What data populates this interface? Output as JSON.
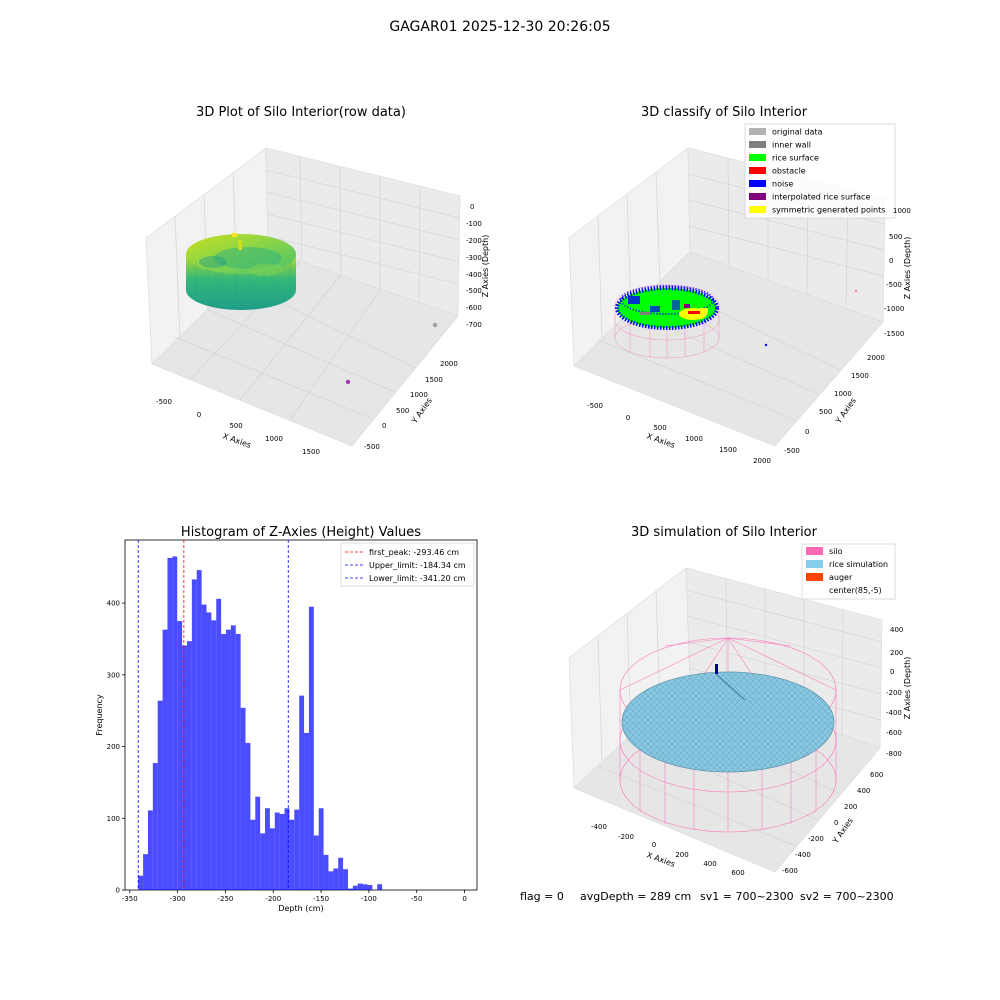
{
  "figure": {
    "title": "GAGAR01 2025-12-30 20:26:05",
    "footer": {
      "flag": "flag = 0",
      "avg_depth": "avgDepth = 289 cm",
      "sv1": "sv1 = 700~2300",
      "sv2": "sv2 = 700~2300"
    }
  },
  "panels": {
    "raw": {
      "title": "3D Plot of Silo Interior(row data)",
      "xlabel": "X Axies",
      "ylabel": "Y Axies",
      "zlabel": "Z Axies (Depth)",
      "xticks": [
        "-500",
        "0",
        "500",
        "1000",
        "1500"
      ],
      "yticks": [
        "-500",
        "0",
        "500",
        "1000",
        "1500",
        "2000"
      ],
      "zticks": [
        "0",
        "-100",
        "-200",
        "-300",
        "-400",
        "-500",
        "-600",
        "-700"
      ]
    },
    "classify": {
      "title": "3D classify of Silo Interior",
      "xlabel": "X Axies",
      "ylabel": "Y Axies",
      "zlabel": "Z Axies (Depth)",
      "xticks": [
        "-500",
        "0",
        "500",
        "1000",
        "1500",
        "2000"
      ],
      "yticks": [
        "-500",
        "0",
        "500",
        "1000",
        "1500",
        "2000"
      ],
      "zticks": [
        "1000",
        "500",
        "0",
        "-500",
        "-1000",
        "-1500"
      ],
      "legend": [
        {
          "label": "original data",
          "color": "#b3b3b3"
        },
        {
          "label": "inner wall",
          "color": "#808080"
        },
        {
          "label": "rice surface",
          "color": "#00ff00"
        },
        {
          "label": "obstacle",
          "color": "#ff0000"
        },
        {
          "label": "noise",
          "color": "#0000ff"
        },
        {
          "label": "interpolated rice surface",
          "color": "#800080"
        },
        {
          "label": "symmetric generated points",
          "color": "#ffff00"
        }
      ]
    },
    "simulation": {
      "title": "3D simulation of Silo Interior",
      "xlabel": "X Axies",
      "ylabel": "Y Axies",
      "zlabel": "Z Axies (Depth)",
      "xticks": [
        "-400",
        "-200",
        "0",
        "200",
        "400",
        "600"
      ],
      "yticks": [
        "-600",
        "-400",
        "-200",
        "0",
        "200",
        "400",
        "600"
      ],
      "zticks": [
        "400",
        "200",
        "0",
        "-200",
        "-400",
        "-600",
        "-800"
      ],
      "legend": [
        {
          "label": "silo",
          "color": "#ff69b4"
        },
        {
          "label": "rice simulation",
          "color": "#87ceeb"
        },
        {
          "label": "auger",
          "color": "#ff4500"
        },
        {
          "label": "center(85,-5)",
          "color": "#ffffff"
        }
      ]
    }
  },
  "chart_data": [
    {
      "type": "bar",
      "title": "Histogram of Z-Axies (Height) Values",
      "xlabel": "Depth (cm)",
      "ylabel": "Frequency",
      "xlim": [
        -355,
        13
      ],
      "ylim": [
        0,
        488
      ],
      "xticks": [
        -350,
        -300,
        -250,
        -200,
        -150,
        -100,
        -50,
        0
      ],
      "yticks": [
        0,
        100,
        200,
        300,
        400
      ],
      "bar_color": "#0000ff",
      "bin_start": -341.2,
      "bin_width": 5.1,
      "values": [
        20,
        50,
        111,
        177,
        264,
        363,
        463,
        465,
        375,
        341,
        347,
        433,
        446,
        398,
        387,
        376,
        406,
        357,
        363,
        369,
        357,
        254,
        205,
        98,
        130,
        79,
        114,
        86,
        108,
        106,
        114,
        98,
        112,
        271,
        219,
        395,
        76,
        114,
        49,
        26,
        30,
        45,
        29,
        2,
        6,
        9,
        8,
        7,
        0,
        8
      ],
      "lines": [
        {
          "label": "first_peak: -293.46 cm",
          "x": -293.46,
          "color": "#ff0000"
        },
        {
          "label": "Upper_limit: -184.34 cm",
          "x": -184.34,
          "color": "#0000ff"
        },
        {
          "label": "Lower_limit: -341.20 cm",
          "x": -341.2,
          "color": "#0000ff"
        }
      ],
      "legend_loc": "upper right"
    }
  ]
}
